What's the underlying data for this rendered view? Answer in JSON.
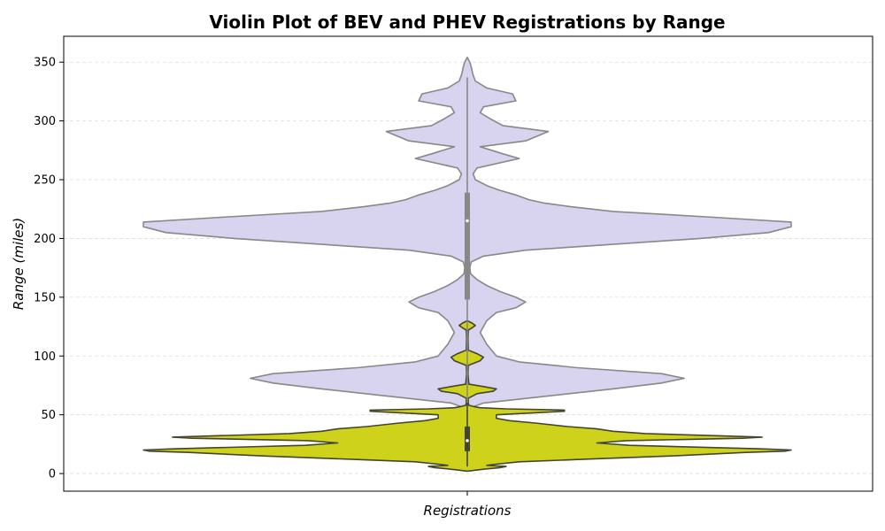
{
  "chart_data": {
    "type": "violin",
    "title": "Violin Plot of BEV and PHEV Registrations by Range",
    "xlabel": "Registrations",
    "ylabel": "Range (miles)",
    "ylim": [
      -15,
      372
    ],
    "yticks": [
      0,
      50,
      100,
      150,
      200,
      250,
      300,
      350
    ],
    "grid": {
      "axis": "y",
      "style": "dashed"
    },
    "series": [
      {
        "fill": "#d8d3ee",
        "edge": "#888888",
        "box": {
          "q1": 148,
          "median": 215,
          "q3": 239,
          "whisker_low": 60,
          "whisker_high": 337
        },
        "density": [
          [
            55,
            0.0
          ],
          [
            60,
            0.05
          ],
          [
            66,
            0.25
          ],
          [
            72,
            0.45
          ],
          [
            77,
            0.6
          ],
          [
            81,
            0.67
          ],
          [
            85,
            0.6
          ],
          [
            90,
            0.34
          ],
          [
            95,
            0.16
          ],
          [
            100,
            0.09
          ],
          [
            110,
            0.06
          ],
          [
            120,
            0.04
          ],
          [
            130,
            0.06
          ],
          [
            137,
            0.09
          ],
          [
            141,
            0.15
          ],
          [
            146,
            0.18
          ],
          [
            150,
            0.15
          ],
          [
            155,
            0.1
          ],
          [
            160,
            0.06
          ],
          [
            165,
            0.03
          ],
          [
            170,
            0.01
          ],
          [
            175,
            0.008
          ],
          [
            180,
            0.012
          ],
          [
            185,
            0.05
          ],
          [
            190,
            0.18
          ],
          [
            195,
            0.45
          ],
          [
            200,
            0.72
          ],
          [
            205,
            0.93
          ],
          [
            210,
            1.0
          ],
          [
            214,
            1.0
          ],
          [
            218,
            0.76
          ],
          [
            223,
            0.45
          ],
          [
            227,
            0.32
          ],
          [
            230,
            0.24
          ],
          [
            233,
            0.19
          ],
          [
            237,
            0.15
          ],
          [
            241,
            0.1
          ],
          [
            245,
            0.06
          ],
          [
            250,
            0.025
          ],
          [
            255,
            0.018
          ],
          [
            260,
            0.03
          ],
          [
            268,
            0.16
          ],
          [
            272,
            0.11
          ],
          [
            278,
            0.04
          ],
          [
            283,
            0.18
          ],
          [
            291,
            0.25
          ],
          [
            296,
            0.11
          ],
          [
            302,
            0.07
          ],
          [
            307,
            0.04
          ],
          [
            312,
            0.05
          ],
          [
            317,
            0.15
          ],
          [
            323,
            0.14
          ],
          [
            328,
            0.06
          ],
          [
            334,
            0.025
          ],
          [
            340,
            0.017
          ],
          [
            345,
            0.013
          ],
          [
            350,
            0.008
          ],
          [
            354,
            0.0
          ]
        ]
      },
      {
        "fill": "#cfd21a",
        "edge": "#444433",
        "box": {
          "q1": 19,
          "median": 28,
          "q3": 40,
          "whisker_low": 6,
          "whisker_high": 60
        },
        "density": [
          [
            2,
            0.0
          ],
          [
            3,
            0.03
          ],
          [
            4,
            0.06
          ],
          [
            5,
            0.1
          ],
          [
            6,
            0.12
          ],
          [
            7,
            0.06
          ],
          [
            8,
            0.09
          ],
          [
            10,
            0.16
          ],
          [
            12,
            0.35
          ],
          [
            15,
            0.63
          ],
          [
            18,
            0.86
          ],
          [
            19,
            0.98
          ],
          [
            20,
            1.0
          ],
          [
            21,
            0.91
          ],
          [
            24,
            0.5
          ],
          [
            26,
            0.4
          ],
          [
            28,
            0.49
          ],
          [
            30,
            0.85
          ],
          [
            31,
            0.91
          ],
          [
            32,
            0.79
          ],
          [
            34,
            0.55
          ],
          [
            36,
            0.45
          ],
          [
            38,
            0.4
          ],
          [
            40,
            0.31
          ],
          [
            43,
            0.21
          ],
          [
            45,
            0.13
          ],
          [
            47,
            0.09
          ],
          [
            50,
            0.09
          ],
          [
            53,
            0.3
          ],
          [
            54,
            0.3
          ],
          [
            55,
            0.12
          ],
          [
            56,
            0.04
          ],
          [
            57,
            0.02
          ],
          [
            58,
            0.005
          ],
          [
            60,
            0.003
          ],
          [
            64,
            0.003
          ],
          [
            68,
            0.03
          ],
          [
            70,
            0.08
          ],
          [
            72,
            0.09
          ],
          [
            74,
            0.05
          ],
          [
            76,
            0.005
          ],
          [
            85,
            0.002
          ],
          [
            92,
            0.003
          ],
          [
            96,
            0.04
          ],
          [
            99,
            0.05
          ],
          [
            102,
            0.03
          ],
          [
            105,
            0.003
          ],
          [
            115,
            0.002
          ],
          [
            122,
            0.003
          ],
          [
            124,
            0.015
          ],
          [
            126,
            0.025
          ],
          [
            128,
            0.015
          ],
          [
            130,
            0.0
          ]
        ]
      }
    ]
  }
}
